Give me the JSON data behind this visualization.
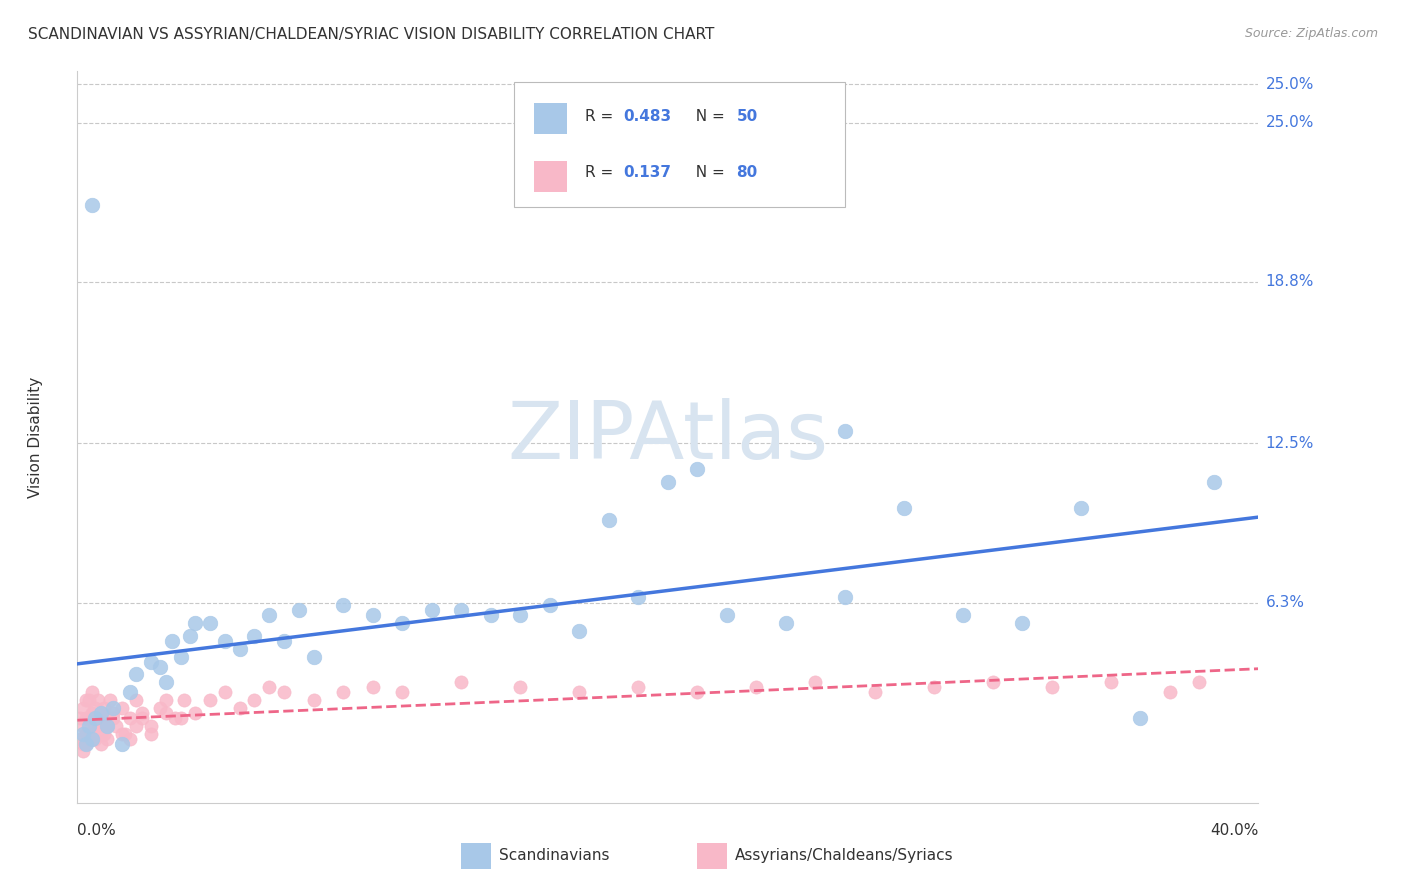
{
  "title": "SCANDINAVIAN VS ASSYRIAN/CHALDEAN/SYRIAC VISION DISABILITY CORRELATION CHART",
  "source": "Source: ZipAtlas.com",
  "ylabel": "Vision Disability",
  "ytick_labels": [
    "25.0%",
    "18.8%",
    "12.5%",
    "6.3%"
  ],
  "ytick_values": [
    0.25,
    0.188,
    0.125,
    0.063
  ],
  "ymax": 0.27,
  "ymin": -0.015,
  "xmin": 0.0,
  "xmax": 0.4,
  "legend1_r": "0.483",
  "legend1_n": "50",
  "legend2_r": "0.137",
  "legend2_n": "80",
  "blue_scatter_color": "#a8c8e8",
  "pink_scatter_color": "#f8b8c8",
  "blue_line_color": "#4477dd",
  "pink_line_color": "#ee6688",
  "watermark_color": "#d8e4f0",
  "scatter_blue_x": [
    0.002,
    0.003,
    0.004,
    0.005,
    0.006,
    0.008,
    0.01,
    0.012,
    0.015,
    0.018,
    0.02,
    0.025,
    0.028,
    0.03,
    0.032,
    0.035,
    0.038,
    0.04,
    0.045,
    0.05,
    0.055,
    0.06,
    0.065,
    0.07,
    0.075,
    0.08,
    0.09,
    0.1,
    0.11,
    0.12,
    0.13,
    0.14,
    0.15,
    0.16,
    0.17,
    0.18,
    0.19,
    0.2,
    0.21,
    0.22,
    0.24,
    0.26,
    0.28,
    0.3,
    0.32,
    0.34,
    0.36,
    0.385,
    0.005,
    0.26
  ],
  "scatter_blue_y": [
    0.012,
    0.008,
    0.015,
    0.01,
    0.018,
    0.02,
    0.015,
    0.022,
    0.008,
    0.028,
    0.035,
    0.04,
    0.038,
    0.032,
    0.048,
    0.042,
    0.05,
    0.055,
    0.055,
    0.048,
    0.045,
    0.05,
    0.058,
    0.048,
    0.06,
    0.042,
    0.062,
    0.058,
    0.055,
    0.06,
    0.06,
    0.058,
    0.058,
    0.062,
    0.052,
    0.095,
    0.065,
    0.11,
    0.115,
    0.058,
    0.055,
    0.065,
    0.1,
    0.058,
    0.055,
    0.1,
    0.018,
    0.11,
    0.218,
    0.13
  ],
  "scatter_pink_x": [
    0.001,
    0.001,
    0.002,
    0.002,
    0.002,
    0.003,
    0.003,
    0.003,
    0.004,
    0.004,
    0.004,
    0.005,
    0.005,
    0.005,
    0.006,
    0.006,
    0.006,
    0.007,
    0.007,
    0.008,
    0.008,
    0.009,
    0.009,
    0.01,
    0.01,
    0.011,
    0.012,
    0.013,
    0.015,
    0.016,
    0.018,
    0.02,
    0.022,
    0.025,
    0.028,
    0.03,
    0.033,
    0.036,
    0.04,
    0.045,
    0.05,
    0.055,
    0.06,
    0.065,
    0.07,
    0.08,
    0.09,
    0.1,
    0.11,
    0.13,
    0.15,
    0.17,
    0.19,
    0.21,
    0.23,
    0.25,
    0.27,
    0.29,
    0.31,
    0.33,
    0.35,
    0.37,
    0.38,
    0.002,
    0.003,
    0.004,
    0.005,
    0.006,
    0.007,
    0.008,
    0.009,
    0.01,
    0.012,
    0.015,
    0.018,
    0.02,
    0.022,
    0.025,
    0.03,
    0.035
  ],
  "scatter_pink_y": [
    0.01,
    0.018,
    0.008,
    0.015,
    0.022,
    0.012,
    0.018,
    0.025,
    0.01,
    0.018,
    0.025,
    0.012,
    0.02,
    0.028,
    0.015,
    0.022,
    0.01,
    0.018,
    0.025,
    0.012,
    0.02,
    0.015,
    0.022,
    0.01,
    0.018,
    0.025,
    0.02,
    0.015,
    0.022,
    0.012,
    0.018,
    0.025,
    0.02,
    0.015,
    0.022,
    0.025,
    0.018,
    0.025,
    0.02,
    0.025,
    0.028,
    0.022,
    0.025,
    0.03,
    0.028,
    0.025,
    0.028,
    0.03,
    0.028,
    0.032,
    0.03,
    0.028,
    0.03,
    0.028,
    0.03,
    0.032,
    0.028,
    0.03,
    0.032,
    0.03,
    0.032,
    0.028,
    0.032,
    0.005,
    0.008,
    0.012,
    0.01,
    0.018,
    0.015,
    0.008,
    0.012,
    0.015,
    0.018,
    0.012,
    0.01,
    0.015,
    0.018,
    0.012,
    0.02,
    0.018
  ],
  "watermark": "ZIPAtlas",
  "bg_color": "#ffffff",
  "grid_color": "#c8c8c8",
  "title_color": "#333333",
  "source_color": "#999999",
  "label_color": "#4477dd"
}
